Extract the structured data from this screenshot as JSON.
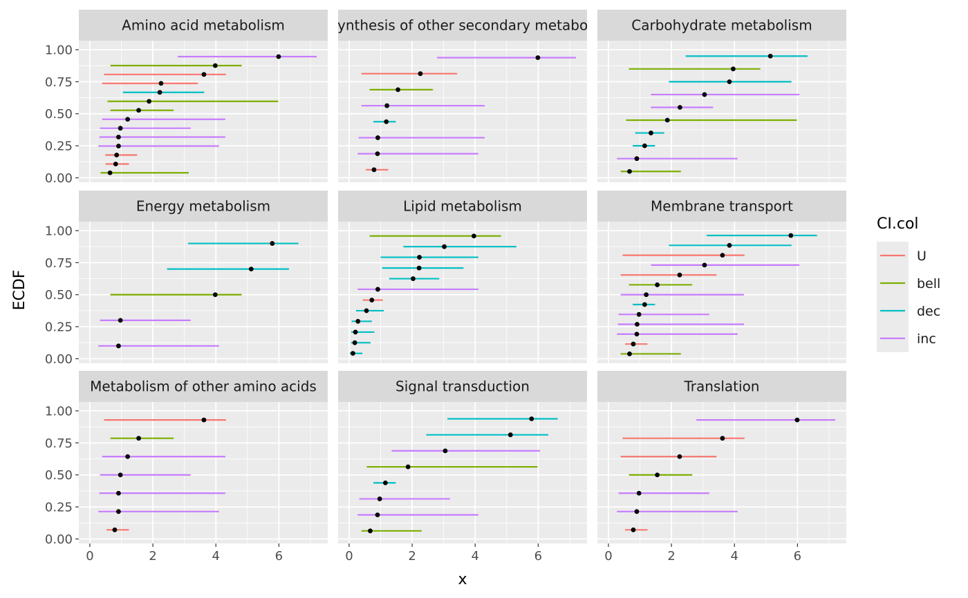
{
  "colors": {
    "U": "#F8766D",
    "bell": "#7CAE00",
    "dec": "#00BFC4",
    "inc": "#C77CFF",
    "point": "#000000",
    "panel_bg": "#EBEBEB",
    "strip_bg": "#D9D9D9",
    "grid": "#FFFFFF"
  },
  "chart_data": {
    "type": "interval",
    "xlabel": "x",
    "ylabel": "ECDF",
    "xlim": [
      -0.35,
      7.55
    ],
    "ylim": [
      -0.035,
      1.07
    ],
    "x_ticks": [
      "0",
      "2",
      "4",
      "6"
    ],
    "y_ticks": [
      "0.00",
      "0.25",
      "0.50",
      "0.75",
      "1.00"
    ],
    "legend": {
      "title": "CI.col",
      "position": "right",
      "entries": [
        "U",
        "bell",
        "dec",
        "inc"
      ]
    },
    "panels": [
      {
        "title": "Amino acid metabolism",
        "intervals": [
          {
            "y": 0.039,
            "x": 0.64,
            "lo": 0.34,
            "hi": 3.14,
            "ci": "bell"
          },
          {
            "y": 0.108,
            "x": 0.82,
            "lo": 0.5,
            "hi": 1.24,
            "ci": "U"
          },
          {
            "y": 0.178,
            "x": 0.85,
            "lo": 0.49,
            "hi": 1.5,
            "ci": "U"
          },
          {
            "y": 0.248,
            "x": 0.91,
            "lo": 0.27,
            "hi": 4.1,
            "ci": "inc"
          },
          {
            "y": 0.318,
            "x": 0.91,
            "lo": 0.3,
            "hi": 4.3,
            "ci": "inc"
          },
          {
            "y": 0.387,
            "x": 0.97,
            "lo": 0.32,
            "hi": 3.2,
            "ci": "inc"
          },
          {
            "y": 0.457,
            "x": 1.2,
            "lo": 0.39,
            "hi": 4.3,
            "ci": "inc"
          },
          {
            "y": 0.527,
            "x": 1.55,
            "lo": 0.65,
            "hi": 2.66,
            "ci": "bell"
          },
          {
            "y": 0.597,
            "x": 1.88,
            "lo": 0.56,
            "hi": 5.98,
            "ci": "bell"
          },
          {
            "y": 0.667,
            "x": 2.22,
            "lo": 1.05,
            "hi": 3.63,
            "ci": "dec"
          },
          {
            "y": 0.737,
            "x": 2.26,
            "lo": 0.39,
            "hi": 3.43,
            "ci": "U"
          },
          {
            "y": 0.807,
            "x": 3.62,
            "lo": 0.45,
            "hi": 4.32,
            "ci": "U"
          },
          {
            "y": 0.876,
            "x": 3.98,
            "lo": 0.65,
            "hi": 4.82,
            "ci": "bell"
          },
          {
            "y": 0.946,
            "x": 5.99,
            "lo": 2.79,
            "hi": 7.2,
            "ci": "inc"
          }
        ]
      },
      {
        "title": "Biosynthesis of other secondary metabolites",
        "intervals": [
          {
            "y": 0.063,
            "x": 0.79,
            "lo": 0.53,
            "hi": 1.24,
            "ci": "U"
          },
          {
            "y": 0.188,
            "x": 0.9,
            "lo": 0.27,
            "hi": 4.1,
            "ci": "inc"
          },
          {
            "y": 0.313,
            "x": 0.91,
            "lo": 0.3,
            "hi": 4.3,
            "ci": "inc"
          },
          {
            "y": 0.438,
            "x": 1.18,
            "lo": 0.77,
            "hi": 1.48,
            "ci": "dec"
          },
          {
            "y": 0.563,
            "x": 1.2,
            "lo": 0.39,
            "hi": 4.3,
            "ci": "inc"
          },
          {
            "y": 0.688,
            "x": 1.55,
            "lo": 0.65,
            "hi": 2.66,
            "ci": "bell"
          },
          {
            "y": 0.813,
            "x": 2.26,
            "lo": 0.39,
            "hi": 3.43,
            "ci": "U"
          },
          {
            "y": 0.938,
            "x": 5.99,
            "lo": 2.79,
            "hi": 7.2,
            "ci": "inc"
          }
        ]
      },
      {
        "title": "Carbohydrate metabolism",
        "intervals": [
          {
            "y": 0.05,
            "x": 0.67,
            "lo": 0.39,
            "hi": 2.3,
            "ci": "bell"
          },
          {
            "y": 0.15,
            "x": 0.9,
            "lo": 0.27,
            "hi": 4.1,
            "ci": "inc"
          },
          {
            "y": 0.25,
            "x": 1.15,
            "lo": 0.77,
            "hi": 1.48,
            "ci": "dec"
          },
          {
            "y": 0.35,
            "x": 1.35,
            "lo": 0.85,
            "hi": 1.77,
            "ci": "dec"
          },
          {
            "y": 0.45,
            "x": 1.87,
            "lo": 0.56,
            "hi": 5.98,
            "ci": "bell"
          },
          {
            "y": 0.55,
            "x": 2.27,
            "lo": 1.35,
            "hi": 3.32,
            "ci": "inc"
          },
          {
            "y": 0.65,
            "x": 3.05,
            "lo": 1.35,
            "hi": 6.06,
            "ci": "inc"
          },
          {
            "y": 0.75,
            "x": 3.84,
            "lo": 1.92,
            "hi": 5.81,
            "ci": "dec"
          },
          {
            "y": 0.85,
            "x": 3.96,
            "lo": 0.65,
            "hi": 4.82,
            "ci": "bell"
          },
          {
            "y": 0.95,
            "x": 5.14,
            "lo": 2.45,
            "hi": 6.32,
            "ci": "dec"
          }
        ]
      },
      {
        "title": "Energy metabolism",
        "intervals": [
          {
            "y": 0.1,
            "x": 0.91,
            "lo": 0.27,
            "hi": 4.1,
            "ci": "inc"
          },
          {
            "y": 0.3,
            "x": 0.97,
            "lo": 0.32,
            "hi": 3.2,
            "ci": "inc"
          },
          {
            "y": 0.5,
            "x": 3.98,
            "lo": 0.65,
            "hi": 4.82,
            "ci": "bell"
          },
          {
            "y": 0.7,
            "x": 5.12,
            "lo": 2.45,
            "hi": 6.32,
            "ci": "dec"
          },
          {
            "y": 0.9,
            "x": 5.79,
            "lo": 3.12,
            "hi": 6.62,
            "ci": "dec"
          }
        ]
      },
      {
        "title": "Lipid metabolism",
        "intervals": [
          {
            "y": 0.042,
            "x": 0.12,
            "lo": 0.02,
            "hi": 0.42,
            "ci": "dec"
          },
          {
            "y": 0.125,
            "x": 0.18,
            "lo": 0.06,
            "hi": 0.68,
            "ci": "dec"
          },
          {
            "y": 0.208,
            "x": 0.2,
            "lo": 0.07,
            "hi": 0.8,
            "ci": "dec"
          },
          {
            "y": 0.292,
            "x": 0.28,
            "lo": 0.08,
            "hi": 0.72,
            "ci": "dec"
          },
          {
            "y": 0.375,
            "x": 0.55,
            "lo": 0.22,
            "hi": 1.1,
            "ci": "dec"
          },
          {
            "y": 0.458,
            "x": 0.72,
            "lo": 0.43,
            "hi": 1.07,
            "ci": "U"
          },
          {
            "y": 0.542,
            "x": 0.91,
            "lo": 0.27,
            "hi": 4.1,
            "ci": "inc"
          },
          {
            "y": 0.625,
            "x": 2.03,
            "lo": 1.27,
            "hi": 2.86,
            "ci": "dec"
          },
          {
            "y": 0.708,
            "x": 2.22,
            "lo": 1.05,
            "hi": 3.63,
            "ci": "dec"
          },
          {
            "y": 0.792,
            "x": 2.23,
            "lo": 1.0,
            "hi": 4.1,
            "ci": "dec"
          },
          {
            "y": 0.875,
            "x": 3.02,
            "lo": 1.72,
            "hi": 5.31,
            "ci": "dec"
          },
          {
            "y": 0.958,
            "x": 3.96,
            "lo": 0.65,
            "hi": 4.82,
            "ci": "bell"
          }
        ]
      },
      {
        "title": "Membrane transport",
        "intervals": [
          {
            "y": 0.038,
            "x": 0.67,
            "lo": 0.39,
            "hi": 2.3,
            "ci": "bell"
          },
          {
            "y": 0.115,
            "x": 0.79,
            "lo": 0.53,
            "hi": 1.24,
            "ci": "U"
          },
          {
            "y": 0.192,
            "x": 0.9,
            "lo": 0.27,
            "hi": 4.1,
            "ci": "inc"
          },
          {
            "y": 0.269,
            "x": 0.91,
            "lo": 0.3,
            "hi": 4.3,
            "ci": "inc"
          },
          {
            "y": 0.346,
            "x": 0.97,
            "lo": 0.32,
            "hi": 3.2,
            "ci": "inc"
          },
          {
            "y": 0.423,
            "x": 1.15,
            "lo": 0.77,
            "hi": 1.48,
            "ci": "dec"
          },
          {
            "y": 0.5,
            "x": 1.2,
            "lo": 0.39,
            "hi": 4.3,
            "ci": "inc"
          },
          {
            "y": 0.577,
            "x": 1.55,
            "lo": 0.65,
            "hi": 2.66,
            "ci": "bell"
          },
          {
            "y": 0.654,
            "x": 2.26,
            "lo": 0.39,
            "hi": 3.43,
            "ci": "U"
          },
          {
            "y": 0.731,
            "x": 3.05,
            "lo": 1.35,
            "hi": 6.06,
            "ci": "inc"
          },
          {
            "y": 0.808,
            "x": 3.62,
            "lo": 0.45,
            "hi": 4.32,
            "ci": "U"
          },
          {
            "y": 0.885,
            "x": 3.84,
            "lo": 1.92,
            "hi": 5.81,
            "ci": "dec"
          },
          {
            "y": 0.962,
            "x": 5.79,
            "lo": 3.12,
            "hi": 6.62,
            "ci": "dec"
          }
        ]
      },
      {
        "title": "Metabolism of other amino acids",
        "intervals": [
          {
            "y": 0.071,
            "x": 0.79,
            "lo": 0.53,
            "hi": 1.24,
            "ci": "U"
          },
          {
            "y": 0.214,
            "x": 0.91,
            "lo": 0.27,
            "hi": 4.1,
            "ci": "inc"
          },
          {
            "y": 0.357,
            "x": 0.91,
            "lo": 0.3,
            "hi": 4.3,
            "ci": "inc"
          },
          {
            "y": 0.5,
            "x": 0.97,
            "lo": 0.32,
            "hi": 3.2,
            "ci": "inc"
          },
          {
            "y": 0.643,
            "x": 1.2,
            "lo": 0.39,
            "hi": 4.3,
            "ci": "inc"
          },
          {
            "y": 0.786,
            "x": 1.55,
            "lo": 0.65,
            "hi": 2.66,
            "ci": "bell"
          },
          {
            "y": 0.929,
            "x": 3.62,
            "lo": 0.45,
            "hi": 4.32,
            "ci": "U"
          }
        ]
      },
      {
        "title": "Signal transduction",
        "intervals": [
          {
            "y": 0.063,
            "x": 0.67,
            "lo": 0.39,
            "hi": 2.3,
            "ci": "bell"
          },
          {
            "y": 0.188,
            "x": 0.9,
            "lo": 0.27,
            "hi": 4.1,
            "ci": "inc"
          },
          {
            "y": 0.313,
            "x": 0.97,
            "lo": 0.32,
            "hi": 3.2,
            "ci": "inc"
          },
          {
            "y": 0.438,
            "x": 1.15,
            "lo": 0.77,
            "hi": 1.48,
            "ci": "dec"
          },
          {
            "y": 0.563,
            "x": 1.87,
            "lo": 0.56,
            "hi": 5.98,
            "ci": "bell"
          },
          {
            "y": 0.688,
            "x": 3.05,
            "lo": 1.35,
            "hi": 6.06,
            "ci": "inc"
          },
          {
            "y": 0.813,
            "x": 5.12,
            "lo": 2.45,
            "hi": 6.32,
            "ci": "dec"
          },
          {
            "y": 0.938,
            "x": 5.79,
            "lo": 3.12,
            "hi": 6.62,
            "ci": "dec"
          }
        ]
      },
      {
        "title": "Translation",
        "intervals": [
          {
            "y": 0.071,
            "x": 0.79,
            "lo": 0.53,
            "hi": 1.24,
            "ci": "U"
          },
          {
            "y": 0.214,
            "x": 0.9,
            "lo": 0.27,
            "hi": 4.1,
            "ci": "inc"
          },
          {
            "y": 0.357,
            "x": 0.97,
            "lo": 0.32,
            "hi": 3.2,
            "ci": "inc"
          },
          {
            "y": 0.5,
            "x": 1.55,
            "lo": 0.65,
            "hi": 2.66,
            "ci": "bell"
          },
          {
            "y": 0.643,
            "x": 2.26,
            "lo": 0.39,
            "hi": 3.43,
            "ci": "U"
          },
          {
            "y": 0.786,
            "x": 3.62,
            "lo": 0.45,
            "hi": 4.32,
            "ci": "U"
          },
          {
            "y": 0.929,
            "x": 5.99,
            "lo": 2.79,
            "hi": 7.2,
            "ci": "inc"
          }
        ]
      }
    ]
  }
}
